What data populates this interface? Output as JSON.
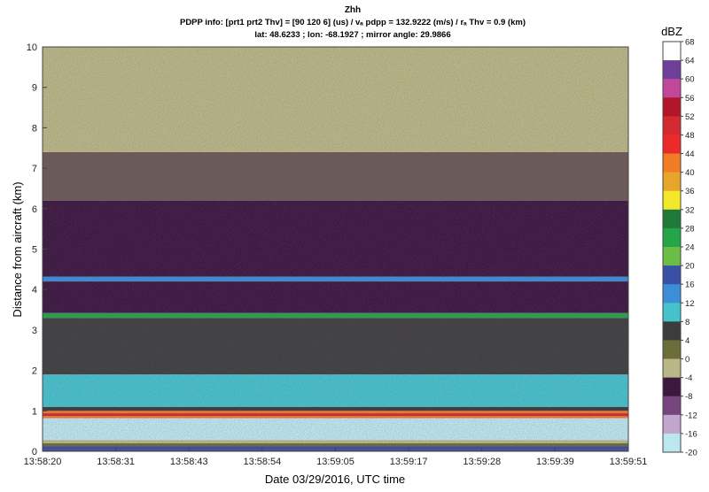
{
  "chart_data": {
    "type": "heatmap",
    "title": "Zhh",
    "subtitle_line1": "PDPP info: [prt1 prt2 Thv] = [90  120    6] (us) / vₐ pdpp = 132.9222 (m/s) / rₐ Thv = 0.9 (km)",
    "subtitle_line2": "lat: 48.6233 ; lon: -68.1927 ; mirror angle: 29.9866",
    "xlabel": "Date 03/29/2016, UTC time",
    "ylabel": "Distance from aircraft (km)",
    "x_ticks": [
      "13:58:20",
      "13:58:31",
      "13:58:43",
      "13:58:54",
      "13:59:05",
      "13:59:17",
      "13:59:28",
      "13:59:39",
      "13:59:51"
    ],
    "y_ticks": [
      "0",
      "1",
      "2",
      "3",
      "4",
      "5",
      "6",
      "7",
      "8",
      "9",
      "10"
    ],
    "ylim": [
      0,
      10
    ],
    "colorbar": {
      "label": "dBZ",
      "ticks": [
        "68",
        "64",
        "60",
        "56",
        "52",
        "48",
        "44",
        "40",
        "36",
        "32",
        "28",
        "24",
        "20",
        "16",
        "12",
        "8",
        "4",
        "0",
        "-4",
        "-8",
        "-12",
        "-16",
        "-20"
      ],
      "colors": [
        "#ffffff",
        "#6d3f98",
        "#c2479a",
        "#b3162a",
        "#d22a2e",
        "#ec2a2a",
        "#f07c25",
        "#e7a62b",
        "#f3e729",
        "#1f7a3a",
        "#25a54a",
        "#6bbd45",
        "#3a4fa6",
        "#3c8fd6",
        "#46c2cb",
        "#3c3c3c",
        "#6b6d3a",
        "#b9b785",
        "#3c1840",
        "#76457d",
        "#c3a6cf",
        "#bde7ef"
      ]
    },
    "layers": [
      {
        "y0": 0,
        "y1": 0.04,
        "color": "#4a3a7a"
      },
      {
        "y0": 0.04,
        "y1": 0.12,
        "color": "#3a4fa6"
      },
      {
        "y0": 0.12,
        "y1": 0.2,
        "color": "#6b6d3a"
      },
      {
        "y0": 0.2,
        "y1": 0.28,
        "color": "#b9b785"
      },
      {
        "y0": 0.28,
        "y1": 0.82,
        "color": "#bde7ef"
      },
      {
        "y0": 0.82,
        "y1": 0.87,
        "color": "#f07c25"
      },
      {
        "y0": 0.87,
        "y1": 0.94,
        "color": "#d22a2e"
      },
      {
        "y0": 0.94,
        "y1": 1.0,
        "color": "#f07c25"
      },
      {
        "y0": 1.0,
        "y1": 1.1,
        "color": "#3c3c3c"
      },
      {
        "y0": 1.1,
        "y1": 1.9,
        "color": "#46c2cb"
      },
      {
        "y0": 1.9,
        "y1": 3.3,
        "color": "#404040"
      },
      {
        "y0": 3.3,
        "y1": 3.42,
        "color": "#25a54a"
      },
      {
        "y0": 3.42,
        "y1": 4.2,
        "color": "#3c1840"
      },
      {
        "y0": 4.2,
        "y1": 4.32,
        "color": "#3c8fd6"
      },
      {
        "y0": 4.32,
        "y1": 6.2,
        "color": "#3c1840"
      },
      {
        "y0": 6.2,
        "y1": 7.4,
        "color": "#6b5a55"
      },
      {
        "y0": 7.4,
        "y1": 10.0,
        "color": "#b9b785"
      }
    ]
  }
}
